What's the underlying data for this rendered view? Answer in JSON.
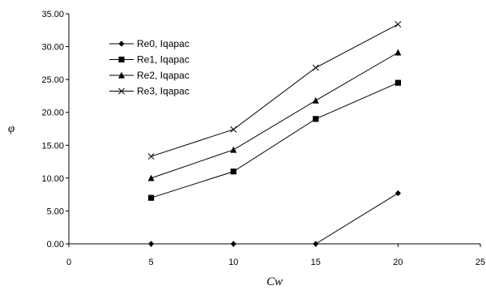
{
  "chart_data": {
    "type": "line",
    "title": "",
    "xlabel": "Cw",
    "ylabel": "φ",
    "xlim": [
      0,
      25
    ],
    "ylim": [
      0,
      35
    ],
    "xticks": [
      0,
      5,
      10,
      15,
      20,
      25
    ],
    "yticks": [
      0,
      5,
      10,
      15,
      20,
      25,
      30,
      35
    ],
    "x_tick_labels": [
      "0",
      "5",
      "10",
      "15",
      "20",
      "25"
    ],
    "y_tick_labels": [
      "0.00",
      "5.00",
      "10.00",
      "15.00",
      "20.00",
      "25.00",
      "30.00",
      "35.00"
    ],
    "grid": false,
    "legend_position": "top-left",
    "x": [
      5,
      10,
      15,
      20
    ],
    "series": [
      {
        "name": "Re0, Iqapac",
        "marker": "diamond",
        "values": [
          0.0,
          0.0,
          0.0,
          7.7
        ]
      },
      {
        "name": "Re1, Iqapac",
        "marker": "square",
        "values": [
          7.0,
          11.0,
          19.0,
          24.5
        ]
      },
      {
        "name": "Re2, Iqapac",
        "marker": "triangle",
        "values": [
          10.0,
          14.3,
          21.8,
          29.1
        ]
      },
      {
        "name": "Re3, Iqapac",
        "marker": "x",
        "values": [
          13.3,
          17.4,
          26.8,
          33.4
        ]
      }
    ],
    "colors": {
      "line": "#000000",
      "marker": "#000000"
    }
  }
}
